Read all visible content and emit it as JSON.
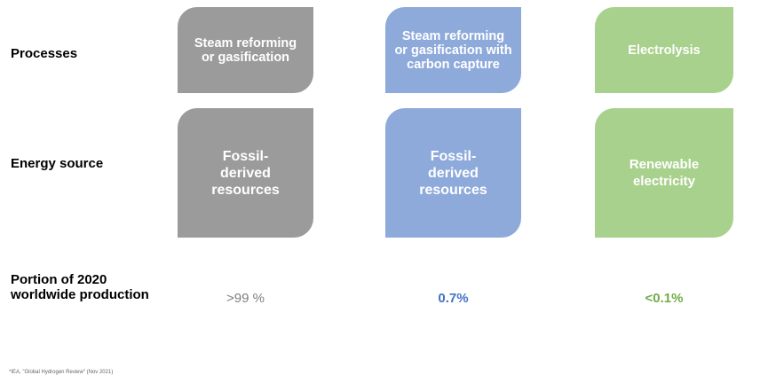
{
  "row_labels": [
    "Processes",
    "Energy source",
    "Portion of 2020 worldwide production"
  ],
  "columns": [
    {
      "process": "Steam reforming or gasification",
      "energy_source": "Fossil-derived resources",
      "portion": ">99 %"
    },
    {
      "process": "Steam reforming or gasification with carbon capture",
      "energy_source": "Fossil-derived resources",
      "portion": "0.7%"
    },
    {
      "process": "Electrolysis",
      "energy_source": "Renewable electricity",
      "portion": "<0.1%"
    }
  ],
  "footnote": "*IEA, \"Global Hydrogen Review\" (Nov 2021)"
}
